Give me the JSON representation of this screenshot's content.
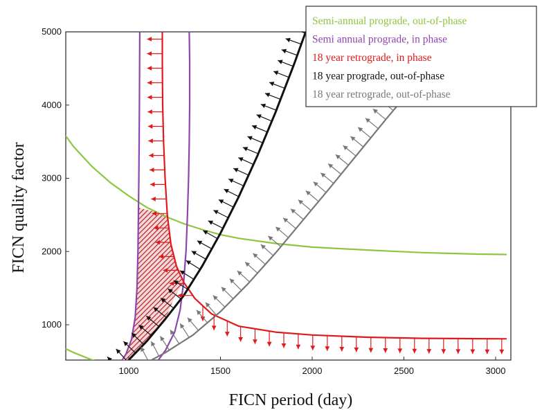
{
  "chart_data": {
    "type": "line",
    "xlabel": "FICN period (day)",
    "ylabel": "FICN quality factor",
    "xlim": [
      600,
      3080
    ],
    "ylim": [
      0,
      5000
    ],
    "x_ticks": [
      1000,
      1500,
      2000,
      2500,
      3000
    ],
    "y_ticks": [
      1000,
      2000,
      3000,
      4000,
      5000
    ],
    "x_tick_labels": [
      "1000",
      "1500",
      "2000",
      "2500",
      "3000"
    ],
    "y_tick_labels": [
      "1000",
      "2000",
      "3000",
      "4000",
      "5000"
    ],
    "grid": false,
    "legend_position": "top-right",
    "series": [
      {
        "name": "Semi-annual prograde, out-of-phase",
        "color": "#8dc63f",
        "segments": [
          [
            [
              600,
              3800
            ],
            [
              650,
              3600
            ],
            [
              700,
              3430
            ],
            [
              800,
              3160
            ],
            [
              900,
              2940
            ],
            [
              1000,
              2760
            ],
            [
              1100,
              2600
            ],
            [
              1200,
              2480
            ],
            [
              1300,
              2380
            ],
            [
              1400,
              2300
            ],
            [
              1500,
              2230
            ],
            [
              1600,
              2180
            ],
            [
              1800,
              2110
            ],
            [
              2000,
              2060
            ],
            [
              2300,
              2020
            ],
            [
              2600,
              1985
            ],
            [
              2900,
              1965
            ],
            [
              3060,
              1960
            ]
          ],
          [
            [
              600,
              740
            ],
            [
              700,
              620
            ],
            [
              800,
              520
            ],
            [
              900,
              440
            ],
            [
              1000,
              380
            ],
            [
              1100,
              330
            ],
            [
              1200,
              290
            ],
            [
              1300,
              260
            ],
            [
              1500,
              220
            ],
            [
              1750,
              180
            ],
            [
              2000,
              160
            ]
          ]
        ]
      },
      {
        "name": "Semi annual prograde, in phase",
        "color": "#8e44ad",
        "segments": [
          [
            [
              1060,
              5000
            ],
            [
              1058,
              4000
            ],
            [
              1055,
              3000
            ],
            [
              1052,
              2400
            ],
            [
              1050,
              2000
            ],
            [
              1045,
              1500
            ],
            [
              1035,
              1100
            ],
            [
              1015,
              800
            ],
            [
              985,
              600
            ],
            [
              955,
              480
            ],
            [
              930,
              400
            ],
            [
              910,
              350
            ]
          ],
          [
            [
              1330,
              5000
            ],
            [
              1332,
              4600
            ],
            [
              1332,
              4000
            ],
            [
              1330,
              3500
            ],
            [
              1326,
              3000
            ],
            [
              1320,
              2500
            ],
            [
              1312,
              2000
            ],
            [
              1300,
              1600
            ],
            [
              1280,
              1200
            ],
            [
              1250,
              900
            ],
            [
              1200,
              650
            ],
            [
              1150,
              480
            ],
            [
              1100,
              380
            ],
            [
              1060,
              340
            ]
          ]
        ]
      },
      {
        "name": "18 year retrograde, in phase",
        "color": "#e0191b",
        "arrows": "left-then-down",
        "segments": [
          [
            [
              1183,
              5000
            ],
            [
              1183,
              4600
            ],
            [
              1185,
              4000
            ],
            [
              1190,
              3500
            ],
            [
              1198,
              3000
            ],
            [
              1210,
              2500
            ],
            [
              1230,
              2100
            ],
            [
              1260,
              1800
            ],
            [
              1300,
              1580
            ],
            [
              1360,
              1360
            ],
            [
              1450,
              1150
            ],
            [
              1600,
              980
            ],
            [
              1800,
              900
            ],
            [
              2000,
              860
            ],
            [
              2300,
              830
            ],
            [
              2600,
              815
            ],
            [
              2900,
              810
            ],
            [
              3060,
              808
            ]
          ]
        ]
      },
      {
        "name": "18 year prograde, out-of-phase",
        "color": "#111111",
        "arrows": "up-left",
        "segments": [
          [
            [
              920,
              340
            ],
            [
              1000,
              520
            ],
            [
              1100,
              780
            ],
            [
              1200,
              1080
            ],
            [
              1300,
              1400
            ],
            [
              1400,
              1800
            ],
            [
              1500,
              2250
            ],
            [
              1600,
              2750
            ],
            [
              1700,
              3300
            ],
            [
              1800,
              3900
            ],
            [
              1900,
              4550
            ],
            [
              1950,
              4900
            ],
            [
              1965,
              5000
            ]
          ]
        ]
      },
      {
        "name": "18 year retrograde, out-of-phase",
        "color": "#777777",
        "arrows": "up-left",
        "segments": [
          [
            [
              1080,
              460
            ],
            [
              1200,
              620
            ],
            [
              1350,
              860
            ],
            [
              1500,
              1180
            ],
            [
              1650,
              1560
            ],
            [
              1800,
              1980
            ],
            [
              1950,
              2430
            ],
            [
              2100,
              2880
            ],
            [
              2250,
              3340
            ],
            [
              2400,
              3800
            ],
            [
              2550,
              4250
            ],
            [
              2650,
              4550
            ],
            [
              2760,
              4870
            ]
          ]
        ]
      }
    ]
  }
}
